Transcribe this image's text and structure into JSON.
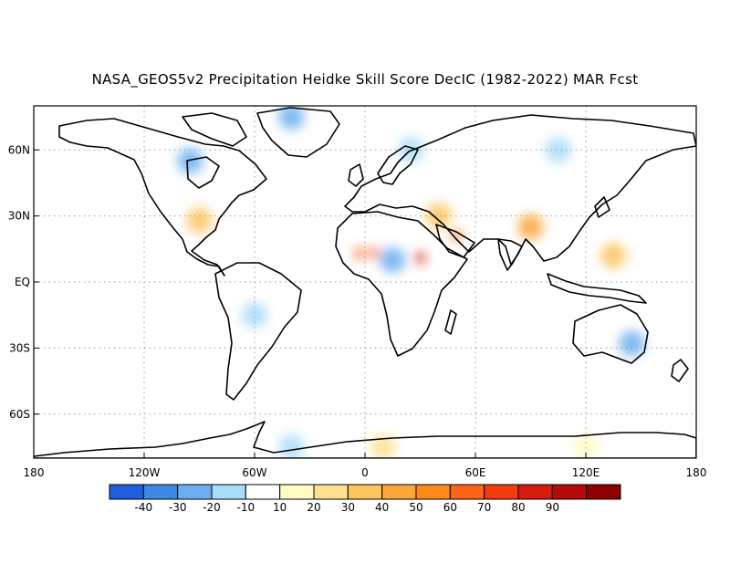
{
  "title": "NASA_GEOS5v2 Precipitation Heidke Skill Score DecIC (1982-2022) MAR Fcst",
  "map": {
    "projection": "cylindrical-equidistant",
    "lon_range": [
      -180,
      180
    ],
    "lat_range": [
      -80,
      80
    ],
    "gridlines": "dotted",
    "lat_ticks": [
      {
        "value": 60,
        "label": "60N"
      },
      {
        "value": 30,
        "label": "30N"
      },
      {
        "value": 0,
        "label": "EQ"
      },
      {
        "value": -30,
        "label": "30S"
      },
      {
        "value": -60,
        "label": "60S"
      }
    ],
    "lon_ticks": [
      {
        "value": -180,
        "label": "180"
      },
      {
        "value": -120,
        "label": "120W"
      },
      {
        "value": -60,
        "label": "60W"
      },
      {
        "value": 0,
        "label": "0"
      },
      {
        "value": 60,
        "label": "60E"
      },
      {
        "value": 120,
        "label": "120E"
      },
      {
        "value": 180,
        "label": "180"
      }
    ],
    "field_highlights": [
      {
        "lon": 30,
        "lat": 11,
        "value": 80
      },
      {
        "lon": -3,
        "lat": 13,
        "value": 65
      },
      {
        "lon": 5,
        "lat": 13,
        "value": 60
      },
      {
        "lon": 50,
        "lat": 21,
        "value": 60
      },
      {
        "lon": 40,
        "lat": 30,
        "value": 30
      },
      {
        "lon": 90,
        "lat": 25,
        "value": 40
      },
      {
        "lon": -90,
        "lat": 28,
        "value": 30
      },
      {
        "lon": 135,
        "lat": 12,
        "value": 30
      },
      {
        "lon": 15,
        "lat": 10,
        "value": -30
      },
      {
        "lon": -95,
        "lat": 55,
        "value": -25
      },
      {
        "lon": -40,
        "lat": 75,
        "value": -30
      },
      {
        "lon": 145,
        "lat": -28,
        "value": -30
      },
      {
        "lon": -60,
        "lat": -15,
        "value": -20
      },
      {
        "lon": 105,
        "lat": 60,
        "value": -20
      },
      {
        "lon": 25,
        "lat": 60,
        "value": -15
      },
      {
        "lon": -40,
        "lat": -75,
        "value": -20
      },
      {
        "lon": 10,
        "lat": -75,
        "value": 25
      },
      {
        "lon": 120,
        "lat": -75,
        "value": 15
      }
    ]
  },
  "colorbar": {
    "colors": [
      "#1f5fdb",
      "#3f87e6",
      "#6aaeef",
      "#a9dcf7",
      "#ffffff",
      "#fffbc5",
      "#fde08f",
      "#fcc55c",
      "#fca53a",
      "#fb891b",
      "#f96514",
      "#f03c0f",
      "#d51b0e",
      "#b30a0a",
      "#8f0000"
    ],
    "labels": [
      "-40",
      "-30",
      "-20",
      "-10",
      "10",
      "20",
      "30",
      "40",
      "50",
      "60",
      "70",
      "80",
      "90"
    ]
  }
}
